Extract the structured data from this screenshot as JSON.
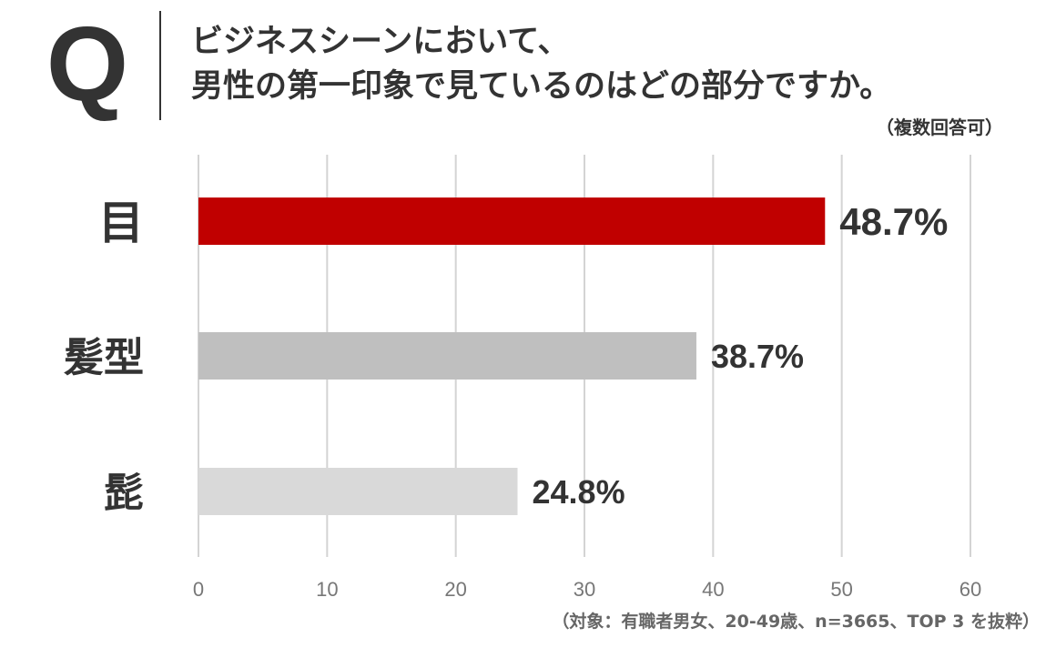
{
  "header": {
    "q_mark": "Q",
    "question_line1": "ビジネスシーンにおいて、",
    "question_line2": "男性の第一印象で見ているのはどの部分ですか。",
    "note": "（複数回答可）"
  },
  "footer": {
    "source": "（対象：有職者男女、20-49歳、n=3665、TOP 3 を抜粋）"
  },
  "colors": {
    "text": "#333333",
    "grid": "#d4d4d4",
    "footer": "#666666"
  },
  "chart_data": {
    "type": "bar",
    "orientation": "horizontal",
    "categories": [
      "目",
      "髪型",
      "髭"
    ],
    "values": [
      48.7,
      38.7,
      24.8
    ],
    "value_labels": [
      "48.7%",
      "38.7%",
      "24.8%"
    ],
    "bar_colors": [
      "#c00000",
      "#bfbfbf",
      "#d9d9d9"
    ],
    "xlim": [
      0,
      60
    ],
    "xticks": [
      0,
      10,
      20,
      30,
      40,
      50,
      60
    ],
    "grid": "vertical",
    "legend": "none"
  }
}
